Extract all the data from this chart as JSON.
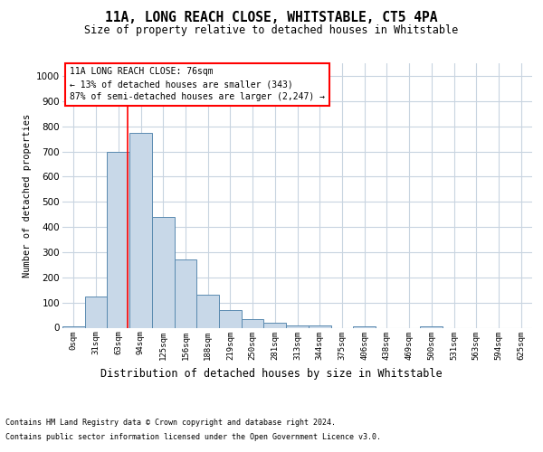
{
  "title": "11A, LONG REACH CLOSE, WHITSTABLE, CT5 4PA",
  "subtitle": "Size of property relative to detached houses in Whitstable",
  "xlabel": "Distribution of detached houses by size in Whitstable",
  "ylabel": "Number of detached properties",
  "categories": [
    "0sqm",
    "31sqm",
    "63sqm",
    "94sqm",
    "125sqm",
    "156sqm",
    "188sqm",
    "219sqm",
    "250sqm",
    "281sqm",
    "313sqm",
    "344sqm",
    "375sqm",
    "406sqm",
    "438sqm",
    "469sqm",
    "500sqm",
    "531sqm",
    "563sqm",
    "594sqm",
    "625sqm"
  ],
  "bar_values": [
    5,
    125,
    700,
    775,
    440,
    270,
    130,
    70,
    35,
    20,
    10,
    10,
    0,
    5,
    0,
    0,
    5,
    0,
    0,
    0,
    0
  ],
  "bar_color": "#c8d8e8",
  "bar_edge_color": "#5a8ab0",
  "ylim": [
    0,
    1050
  ],
  "yticks": [
    0,
    100,
    200,
    300,
    400,
    500,
    600,
    700,
    800,
    900,
    1000
  ],
  "red_line_x": 2.42,
  "annotation_text": "11A LONG REACH CLOSE: 76sqm\n← 13% of detached houses are smaller (343)\n87% of semi-detached houses are larger (2,247) →",
  "footer1": "Contains HM Land Registry data © Crown copyright and database right 2024.",
  "footer2": "Contains public sector information licensed under the Open Government Licence v3.0.",
  "grid_color": "#c8d4e0",
  "title_fontsize": 10.5,
  "subtitle_fontsize": 8.5,
  "ylabel_fontsize": 7.5,
  "xlabel_fontsize": 8.5,
  "xtick_fontsize": 6.5,
  "ytick_fontsize": 7.5,
  "annot_fontsize": 7.0,
  "footer_fontsize": 6.0
}
